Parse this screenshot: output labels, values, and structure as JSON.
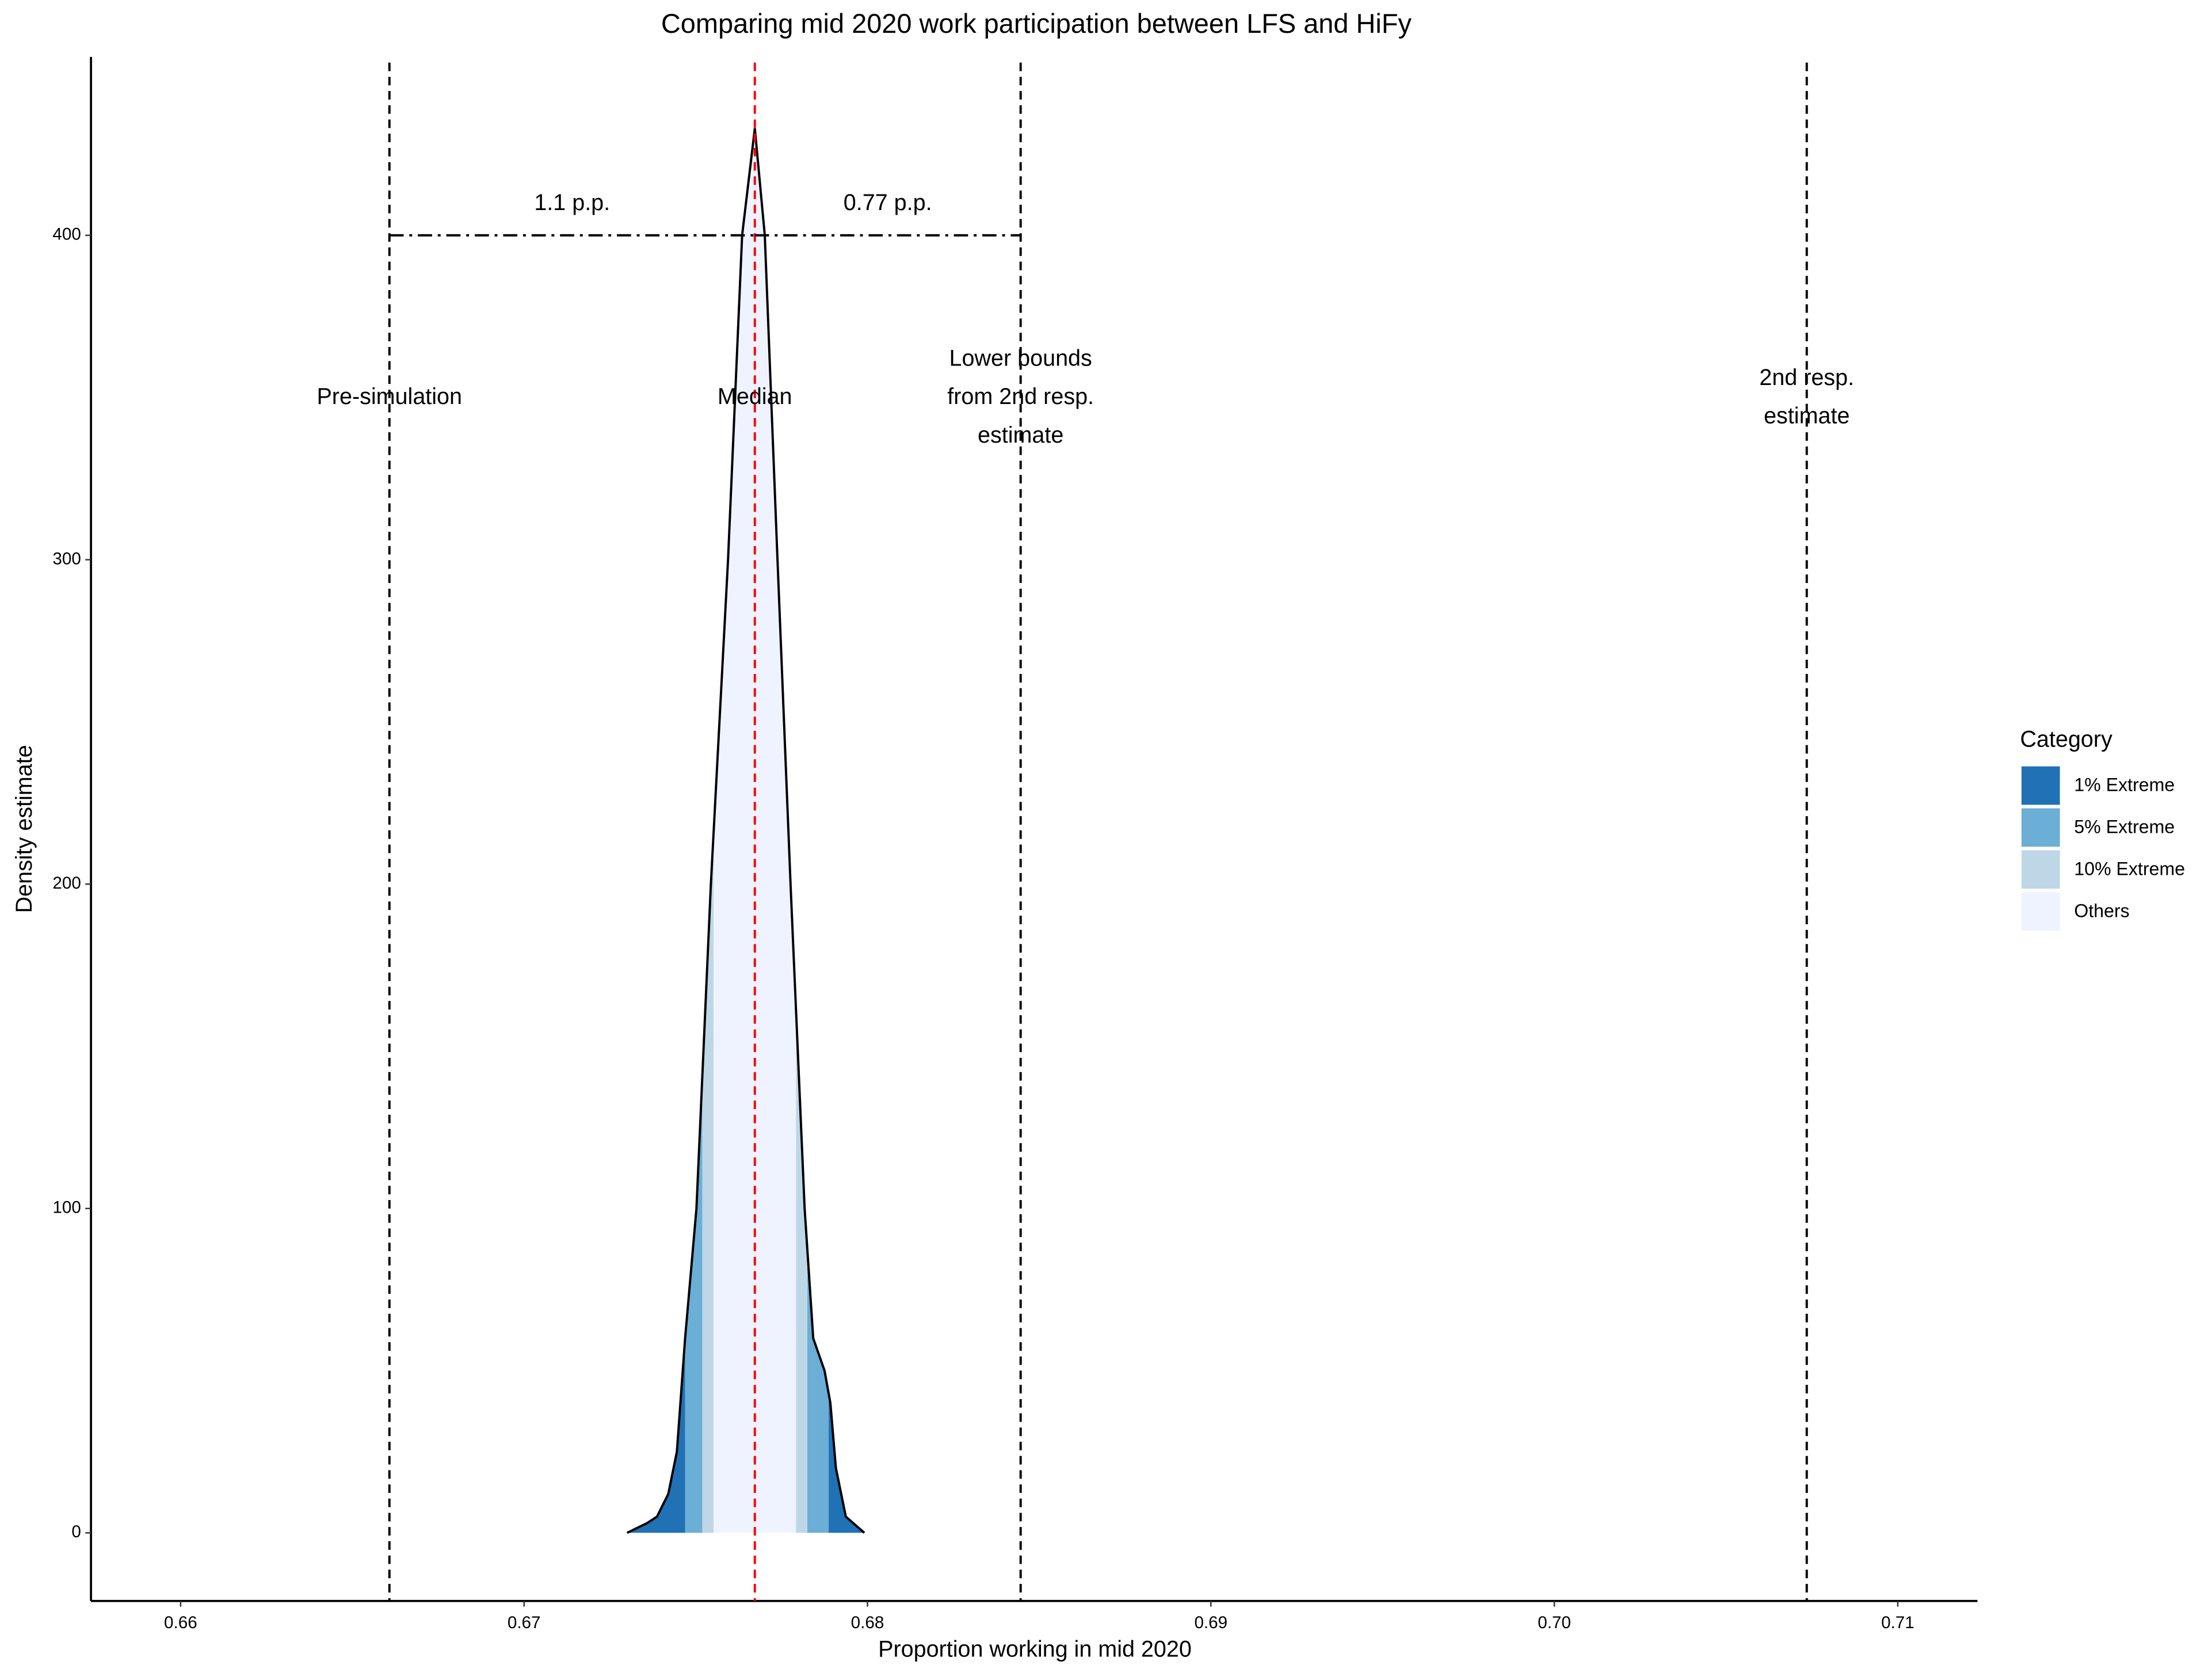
{
  "chart_data": {
    "type": "density",
    "title": "Comparing mid 2020 work participation between LFS and HiFy",
    "x_label": "Proportion working in mid 2020",
    "y_label": "Density estimate",
    "xlim": [
      0.65739,
      0.71232
    ],
    "ylim": [
      -21,
      455
    ],
    "xticks": [
      0.66,
      0.67,
      0.68,
      0.69,
      {
        "value": 0.7,
        "label": "0.70"
      },
      0.71
    ],
    "yticks": [
      0,
      100,
      200,
      300,
      400
    ],
    "x": [
      0.673,
      0.67358,
      0.67387,
      0.6742,
      0.67445,
      0.67469,
      0.67502,
      0.67544,
      0.67594,
      0.67635,
      0.67672,
      0.67701,
      0.67738,
      0.67776,
      0.67817,
      0.67842,
      0.67875,
      0.67892,
      0.67908,
      0.67937,
      0.67991
    ],
    "values": [
      0,
      3,
      5,
      12,
      25,
      60,
      100,
      200,
      300,
      400,
      433,
      400,
      300,
      200,
      100,
      60,
      50,
      40,
      20,
      5,
      0
    ],
    "line_color": "#000000",
    "legend": {
      "title": "Category",
      "items": [
        {
          "name": "1% Extreme",
          "color": "#2171b5"
        },
        {
          "name": "5% Extreme",
          "color": "#6baed6"
        },
        {
          "name": "10% Extreme",
          "color": "#bdd7e7"
        },
        {
          "name": "Others",
          "color": "#eff3ff"
        }
      ]
    },
    "bands": [
      {
        "category": 0,
        "from": 0.673,
        "to": 0.67469
      },
      {
        "category": 1,
        "from": 0.67469,
        "to": 0.67519
      },
      {
        "category": 2,
        "from": 0.67519,
        "to": 0.67552
      },
      {
        "category": 3,
        "from": 0.67552,
        "to": 0.67792
      },
      {
        "category": 2,
        "from": 0.67792,
        "to": 0.67825
      },
      {
        "category": 1,
        "from": 0.67825,
        "to": 0.67887
      },
      {
        "category": 0,
        "from": 0.67887,
        "to": 0.67991
      }
    ],
    "vlines": [
      {
        "x": 0.66608,
        "label": [
          "Pre-simulation"
        ],
        "color": "#000000"
      },
      {
        "x": 0.67672,
        "label": [
          "Median"
        ],
        "color": "#ff0000"
      },
      {
        "x": 0.68446,
        "label": [
          "Lower bounds",
          "from 2nd resp.",
          "estimate"
        ],
        "color": "#000000"
      },
      {
        "x": 0.70735,
        "label": [
          "2nd resp.",
          "estimate"
        ],
        "color": "#000000"
      }
    ],
    "brackets": [
      {
        "y": 400,
        "from": 0.66608,
        "to": 0.67672,
        "label": "1.1 p.p."
      },
      {
        "y": 400,
        "from": 0.67672,
        "to": 0.68446,
        "label": "0.77 p.p."
      }
    ]
  }
}
